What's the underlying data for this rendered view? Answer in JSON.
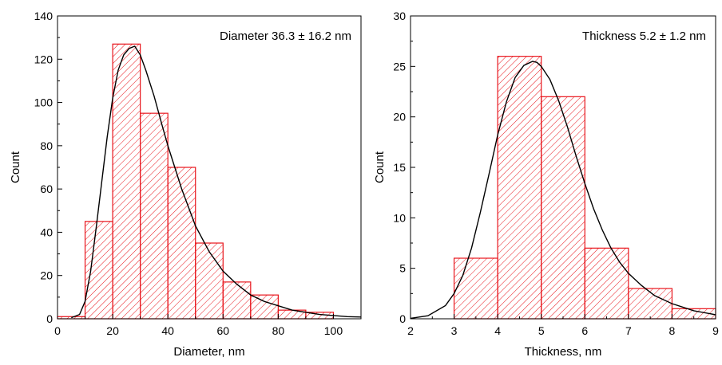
{
  "colors": {
    "bar_stroke": "#e8141b",
    "hatch": "#e8141b",
    "curve": "#000000",
    "axis": "#000000"
  },
  "chart_data": [
    {
      "type": "bar",
      "subtype": "histogram-with-fit-curve",
      "annotation": "Diameter 36.3 ± 16.2 nm",
      "xlabel": "Diameter, nm",
      "ylabel": "Count",
      "xlim": [
        0,
        110
      ],
      "ylim": [
        0,
        140
      ],
      "xticks": [
        0,
        20,
        40,
        60,
        80,
        100
      ],
      "yticks": [
        0,
        20,
        40,
        60,
        80,
        100,
        120,
        140
      ],
      "bin_edges": [
        0,
        10,
        20,
        30,
        40,
        50,
        60,
        70,
        80,
        90,
        100
      ],
      "values": [
        1,
        45,
        127,
        95,
        70,
        35,
        17,
        11,
        4,
        3
      ],
      "fit_curve": {
        "x": [
          5,
          8,
          10,
          12,
          14,
          16,
          18,
          20,
          22,
          24,
          26,
          28,
          30,
          32,
          35,
          38,
          40,
          45,
          50,
          55,
          60,
          65,
          70,
          75,
          80,
          85,
          90,
          95,
          100,
          105,
          110
        ],
        "y": [
          0.5,
          2,
          8,
          22,
          42,
          63,
          84,
          102,
          115,
          122,
          125,
          126,
          122,
          115,
          103,
          89,
          80,
          60,
          43,
          31,
          22,
          16,
          11,
          8,
          6,
          4,
          3,
          2,
          1.5,
          1,
          0.8
        ]
      },
      "legend": "none",
      "grid": false
    },
    {
      "type": "bar",
      "subtype": "histogram-with-fit-curve",
      "annotation": "Thickness 5.2 ± 1.2 nm",
      "xlabel": "Thickness, nm",
      "ylabel": "Count",
      "xlim": [
        2,
        9
      ],
      "ylim": [
        0,
        30
      ],
      "xticks": [
        2,
        3,
        4,
        5,
        6,
        7,
        8,
        9
      ],
      "yticks": [
        0,
        5,
        10,
        15,
        20,
        25,
        30
      ],
      "bin_edges": [
        3,
        4,
        5,
        6,
        7,
        8,
        9
      ],
      "values": [
        6,
        26,
        22,
        7,
        3,
        1
      ],
      "fit_curve": {
        "x": [
          2.0,
          2.4,
          2.8,
          3.0,
          3.2,
          3.4,
          3.6,
          3.8,
          4.0,
          4.2,
          4.4,
          4.6,
          4.8,
          4.9,
          5.0,
          5.2,
          5.4,
          5.6,
          5.8,
          6.0,
          6.2,
          6.4,
          6.6,
          6.8,
          7.0,
          7.3,
          7.6,
          8.0,
          8.5,
          9.0
        ],
        "y": [
          0.05,
          0.3,
          1.3,
          2.5,
          4.3,
          7.0,
          10.5,
          14.3,
          18.2,
          21.5,
          23.9,
          25.1,
          25.5,
          25.4,
          25.0,
          23.7,
          21.6,
          19.0,
          16.1,
          13.4,
          10.9,
          8.8,
          7.0,
          5.6,
          4.5,
          3.3,
          2.3,
          1.5,
          0.8,
          0.4
        ]
      },
      "legend": "none",
      "grid": false
    }
  ]
}
